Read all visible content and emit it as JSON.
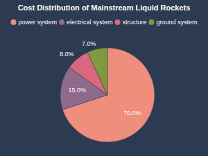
{
  "chart_data": {
    "type": "pie",
    "title": "Cost Distribution of Mainstream Liquid Rockets",
    "categories": [
      "power system",
      "electrical system",
      "structure",
      "ground system"
    ],
    "values": [
      70,
      15,
      8,
      7
    ],
    "value_labels": [
      "70.0%",
      "15.0%",
      "8.0%",
      "7.0%"
    ],
    "colors": [
      "#f08e7e",
      "#8f6a8c",
      "#d9687e",
      "#7f9a3e"
    ],
    "data_labels": true,
    "legend": "top"
  }
}
